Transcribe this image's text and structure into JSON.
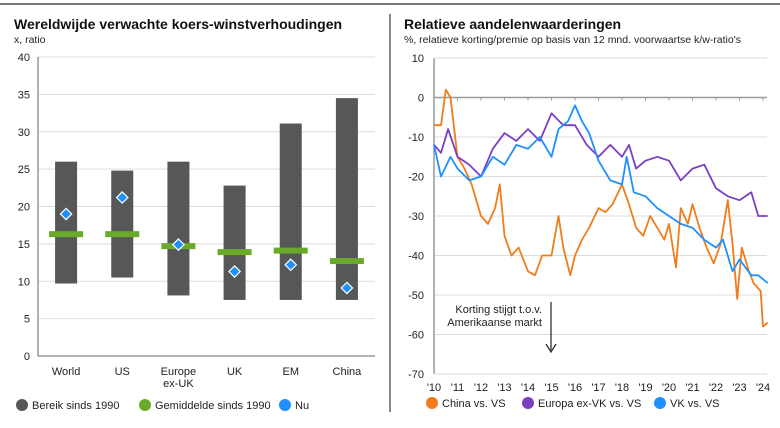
{
  "chart_data": [
    {
      "type": "bar",
      "title": "Wereldwijde verwachte koers-winstverhoudingen",
      "subtitle": "x, ratio",
      "categories": [
        "World",
        "US",
        "Europe\nex-UK",
        "UK",
        "EM",
        "China"
      ],
      "ylim": [
        0,
        40
      ],
      "yticks": [
        0,
        5,
        10,
        15,
        20,
        25,
        30,
        35,
        40
      ],
      "grid": true,
      "legend_position": "bottom",
      "series": [
        {
          "name": "Bereik sinds 1990",
          "type": "range",
          "color": "#555759",
          "low": [
            9.7,
            10.5,
            8.1,
            7.5,
            7.5,
            7.5
          ],
          "high": [
            26,
            24.8,
            26,
            22.8,
            31.1,
            34.5
          ]
        },
        {
          "name": "Gemiddelde sinds 1990",
          "type": "marker-bar",
          "color": "#6aaa2a",
          "values": [
            16.3,
            16.3,
            14.7,
            13.9,
            14.1,
            12.7
          ]
        },
        {
          "name": "Nu",
          "type": "diamond",
          "color": "#1e90ff",
          "values": [
            19,
            21.2,
            14.9,
            11.3,
            12.2,
            9.1
          ]
        }
      ]
    },
    {
      "type": "line",
      "title": "Relatieve aandelenwaarderingen",
      "subtitle": "%, relatieve korting/premie op basis van 12 mnd. voorwaartse k/w-ratio's",
      "ylim": [
        -70,
        10
      ],
      "yticks": [
        10,
        0,
        -10,
        -20,
        -30,
        -40,
        -50,
        -60,
        -70
      ],
      "xlim": [
        2010,
        2024.3
      ],
      "xticks": [
        "'10",
        "'11",
        "'12",
        "'13",
        "'14",
        "'15",
        "'16",
        "'17",
        "'18",
        "'19",
        "'20",
        "'21",
        "'22",
        "'23",
        "'24"
      ],
      "grid": true,
      "legend_position": "bottom",
      "annotation": {
        "text": [
          "Korting stijgt t.o.v.",
          "Amerikaanse markt"
        ],
        "arrow": "down"
      },
      "series": [
        {
          "name": "China vs. VS",
          "color": "#f07c1a",
          "x": [
            2010,
            2010.3,
            2010.5,
            2010.7,
            2011,
            2011.3,
            2011.6,
            2012,
            2012.3,
            2012.6,
            2012.8,
            2013,
            2013.3,
            2013.6,
            2014,
            2014.3,
            2014.6,
            2015,
            2015.3,
            2015.5,
            2015.8,
            2016,
            2016.3,
            2016.6,
            2017,
            2017.3,
            2017.6,
            2018,
            2018.3,
            2018.6,
            2018.9,
            2019.2,
            2019.5,
            2019.8,
            2020,
            2020.3,
            2020.5,
            2020.8,
            2021,
            2021.3,
            2021.6,
            2021.9,
            2022.2,
            2022.5,
            2022.7,
            2022.9,
            2023.1,
            2023.4,
            2023.6,
            2023.9,
            2024,
            2024.2
          ],
          "y": [
            -7,
            -7,
            2,
            0,
            -15,
            -18,
            -22,
            -30,
            -32,
            -28,
            -22,
            -35,
            -40,
            -38,
            -44,
            -45,
            -40,
            -40,
            -30,
            -38,
            -45,
            -40,
            -36,
            -33,
            -28,
            -29,
            -27,
            -22,
            -27,
            -33,
            -35,
            -30,
            -33,
            -36,
            -32,
            -43,
            -28,
            -32,
            -27,
            -33,
            -38,
            -42,
            -37,
            -26,
            -37,
            -51,
            -38,
            -44,
            -47,
            -49,
            -58,
            -57
          ]
        },
        {
          "name": "Europa ex-VK vs. VS",
          "color": "#7b3fc4",
          "x": [
            2010,
            2010.3,
            2010.6,
            2011,
            2011.5,
            2012,
            2012.5,
            2013,
            2013.5,
            2014,
            2014.5,
            2015,
            2015.5,
            2016,
            2016.5,
            2017,
            2017.5,
            2018,
            2018.3,
            2018.6,
            2019,
            2019.5,
            2020,
            2020.5,
            2021,
            2021.5,
            2022,
            2022.5,
            2023,
            2023.5,
            2023.8,
            2024.2
          ],
          "y": [
            -12,
            -14,
            -8,
            -15,
            -17,
            -20,
            -13,
            -9,
            -11,
            -8,
            -11,
            -4,
            -7,
            -7,
            -12,
            -15,
            -12,
            -15,
            -12,
            -18,
            -16,
            -15,
            -16,
            -21,
            -18,
            -17,
            -23,
            -25,
            -26,
            -24,
            -30,
            -30
          ]
        },
        {
          "name": "VK vs. VS",
          "color": "#1e90ff",
          "x": [
            2010,
            2010.3,
            2010.7,
            2011,
            2011.5,
            2012,
            2012.5,
            2013,
            2013.5,
            2014,
            2014.5,
            2015,
            2015.3,
            2015.7,
            2016,
            2016.3,
            2016.6,
            2017,
            2017.5,
            2018,
            2018.2,
            2018.5,
            2019,
            2019.5,
            2020,
            2020.5,
            2021,
            2021.5,
            2022,
            2022.3,
            2022.7,
            2023,
            2023.5,
            2023.8,
            2024.2
          ],
          "y": [
            -12,
            -20,
            -15,
            -18,
            -21,
            -20,
            -15,
            -17,
            -12,
            -13,
            -10,
            -15,
            -8,
            -6,
            -2,
            -6,
            -9,
            -16,
            -21,
            -22,
            -15,
            -24,
            -25,
            -28,
            -30,
            -32,
            -33,
            -36,
            -38,
            -36,
            -44,
            -41,
            -45,
            -45,
            -47
          ]
        }
      ]
    }
  ]
}
